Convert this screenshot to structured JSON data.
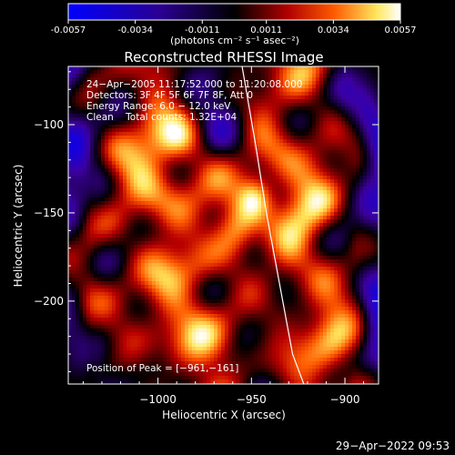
{
  "colorbar": {
    "ticks": [
      "-0.0057",
      "-0.0034",
      "-0.0011",
      "0.0011",
      "0.0034",
      "0.0057"
    ],
    "tick_values": [
      -0.0057,
      -0.0034,
      -0.0011,
      0.0011,
      0.0034,
      0.0057
    ],
    "range": [
      -0.0057,
      0.0057
    ],
    "unit_label": "(photons cm⁻² s⁻¹ asec⁻²)",
    "colors": [
      "#0000ff",
      "#000000",
      "#b00000",
      "#ff6600",
      "#ffff66",
      "#ffffff"
    ]
  },
  "chart_data": {
    "type": "heatmap",
    "title": "Reconstructed RHESSI Image",
    "xlabel": "Heliocentric X (arcsec)",
    "ylabel": "Heliocentric Y (arcsec)",
    "xlim": [
      -1048,
      -882
    ],
    "ylim": [
      -247,
      -67
    ],
    "x_ticks": [
      -1000,
      -950,
      -900
    ],
    "x_tick_labels": [
      "−1000",
      "−950",
      "−900"
    ],
    "y_ticks": [
      -100,
      -150,
      -200
    ],
    "y_tick_labels": [
      "−100",
      "−150",
      "−200"
    ],
    "info_lines": [
      "24−Apr−2005 11:17:52.000 to 11:20:08.000",
      "Detectors: 3F 4F 5F 6F 7F 8F, Att 0",
      "Energy Range: 6.0 − 12.0 keV",
      "Clean    Total counts: 1.32E+04"
    ],
    "peak_label": "Position of Peak = [−961,−161]",
    "peak": {
      "x": -961,
      "y": -161
    },
    "limb": [
      [
        -955,
        -67
      ],
      [
        -948,
        -110
      ],
      [
        -942,
        -150
      ],
      [
        -935,
        -190
      ],
      [
        -928,
        -230
      ],
      [
        -922,
        -247
      ]
    ],
    "blobs": [
      {
        "x": -958,
        "y": -158,
        "sx": 9,
        "sy": 13,
        "v": 0.0054
      },
      {
        "x": -948,
        "y": -141,
        "sx": 7,
        "sy": 9,
        "v": 0.0046
      },
      {
        "x": -975,
        "y": -182,
        "sx": 12,
        "sy": 10,
        "v": 0.0024
      },
      {
        "x": -1003,
        "y": -140,
        "sx": 13,
        "sy": 12,
        "v": 0.0022
      },
      {
        "x": -988,
        "y": -110,
        "sx": 12,
        "sy": 10,
        "v": 0.002
      },
      {
        "x": -932,
        "y": -178,
        "sx": 10,
        "sy": 12,
        "v": 0.0018
      },
      {
        "x": -1025,
        "y": -168,
        "sx": 10,
        "sy": 16,
        "v": 0.0016
      },
      {
        "x": -915,
        "y": -120,
        "sx": 10,
        "sy": 12,
        "v": 0.0017
      },
      {
        "x": -1015,
        "y": -218,
        "sx": 12,
        "sy": 10,
        "v": 0.0012
      },
      {
        "x": -965,
        "y": -225,
        "sx": 14,
        "sy": 10,
        "v": 0.0018
      },
      {
        "x": -905,
        "y": -215,
        "sx": 10,
        "sy": 12,
        "v": 0.0014
      },
      {
        "x": -1040,
        "y": -95,
        "sx": 8,
        "sy": 14,
        "v": -0.0018
      },
      {
        "x": -890,
        "y": -235,
        "sx": 9,
        "sy": 9,
        "v": -0.0016
      },
      {
        "x": -895,
        "y": -90,
        "sx": 8,
        "sy": 10,
        "v": -0.001
      }
    ]
  },
  "timestamp": "29−Apr−2022 09:53"
}
